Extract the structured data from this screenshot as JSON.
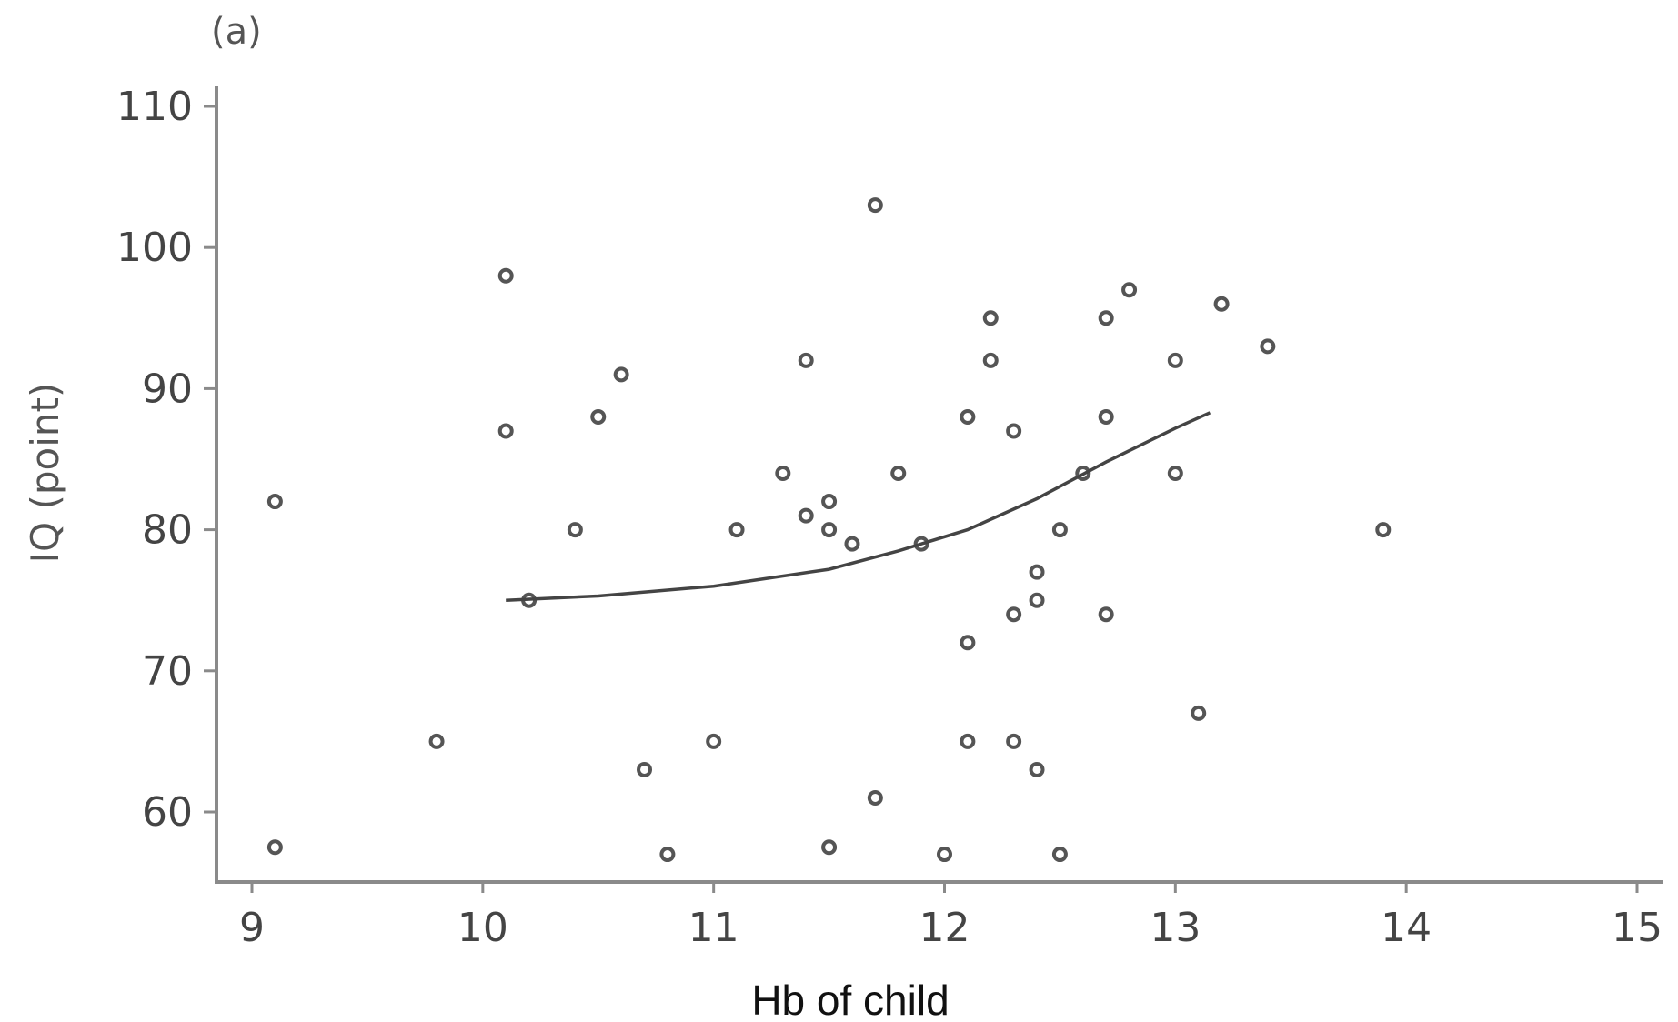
{
  "chart_data": {
    "type": "scatter",
    "panel_label": "(a)",
    "title": "",
    "xlabel": "Hb of child",
    "ylabel": "IQ (point)",
    "xlim": [
      8.95,
      15.15
    ],
    "ylim": [
      55,
      112
    ],
    "x_ticks": [
      9,
      10,
      11,
      12,
      13,
      14,
      15
    ],
    "y_ticks": [
      60,
      70,
      80,
      90,
      100,
      110
    ],
    "grid": false,
    "legend": "none",
    "series": [
      {
        "name": "",
        "marker": "open-circle",
        "points": [
          {
            "x": 9.1,
            "y": 82
          },
          {
            "x": 9.1,
            "y": 57.5
          },
          {
            "x": 9.8,
            "y": 65
          },
          {
            "x": 10.1,
            "y": 98
          },
          {
            "x": 10.1,
            "y": 87
          },
          {
            "x": 10.2,
            "y": 75
          },
          {
            "x": 10.4,
            "y": 80
          },
          {
            "x": 10.5,
            "y": 88
          },
          {
            "x": 10.6,
            "y": 91
          },
          {
            "x": 10.7,
            "y": 63
          },
          {
            "x": 10.8,
            "y": 57
          },
          {
            "x": 11.0,
            "y": 65
          },
          {
            "x": 11.1,
            "y": 80
          },
          {
            "x": 11.3,
            "y": 84
          },
          {
            "x": 11.4,
            "y": 92
          },
          {
            "x": 11.4,
            "y": 81
          },
          {
            "x": 11.5,
            "y": 82
          },
          {
            "x": 11.5,
            "y": 80
          },
          {
            "x": 11.5,
            "y": 57.5
          },
          {
            "x": 11.6,
            "y": 79
          },
          {
            "x": 11.7,
            "y": 103
          },
          {
            "x": 11.7,
            "y": 61
          },
          {
            "x": 11.8,
            "y": 84
          },
          {
            "x": 11.9,
            "y": 79
          },
          {
            "x": 12.0,
            "y": 57
          },
          {
            "x": 12.1,
            "y": 88
          },
          {
            "x": 12.1,
            "y": 72
          },
          {
            "x": 12.1,
            "y": 65
          },
          {
            "x": 12.2,
            "y": 95
          },
          {
            "x": 12.2,
            "y": 92
          },
          {
            "x": 12.3,
            "y": 87
          },
          {
            "x": 12.3,
            "y": 74
          },
          {
            "x": 12.3,
            "y": 65
          },
          {
            "x": 12.4,
            "y": 77
          },
          {
            "x": 12.4,
            "y": 75
          },
          {
            "x": 12.4,
            "y": 63
          },
          {
            "x": 12.5,
            "y": 80
          },
          {
            "x": 12.5,
            "y": 57
          },
          {
            "x": 12.6,
            "y": 84
          },
          {
            "x": 12.7,
            "y": 95
          },
          {
            "x": 12.7,
            "y": 88
          },
          {
            "x": 12.7,
            "y": 74
          },
          {
            "x": 12.8,
            "y": 97
          },
          {
            "x": 13.0,
            "y": 92
          },
          {
            "x": 13.0,
            "y": 84
          },
          {
            "x": 13.1,
            "y": 67
          },
          {
            "x": 13.2,
            "y": 96
          },
          {
            "x": 13.4,
            "y": 93
          },
          {
            "x": 13.9,
            "y": 80
          }
        ]
      }
    ],
    "fit_line": {
      "type": "line",
      "points": [
        {
          "x": 10.1,
          "y": 75
        },
        {
          "x": 10.5,
          "y": 75.3
        },
        {
          "x": 11.0,
          "y": 76
        },
        {
          "x": 11.5,
          "y": 77.2
        },
        {
          "x": 11.8,
          "y": 78.5
        },
        {
          "x": 12.1,
          "y": 80
        },
        {
          "x": 12.4,
          "y": 82.2
        },
        {
          "x": 12.7,
          "y": 84.8
        },
        {
          "x": 13.0,
          "y": 87.2
        },
        {
          "x": 13.15,
          "y": 88.3
        }
      ]
    }
  }
}
